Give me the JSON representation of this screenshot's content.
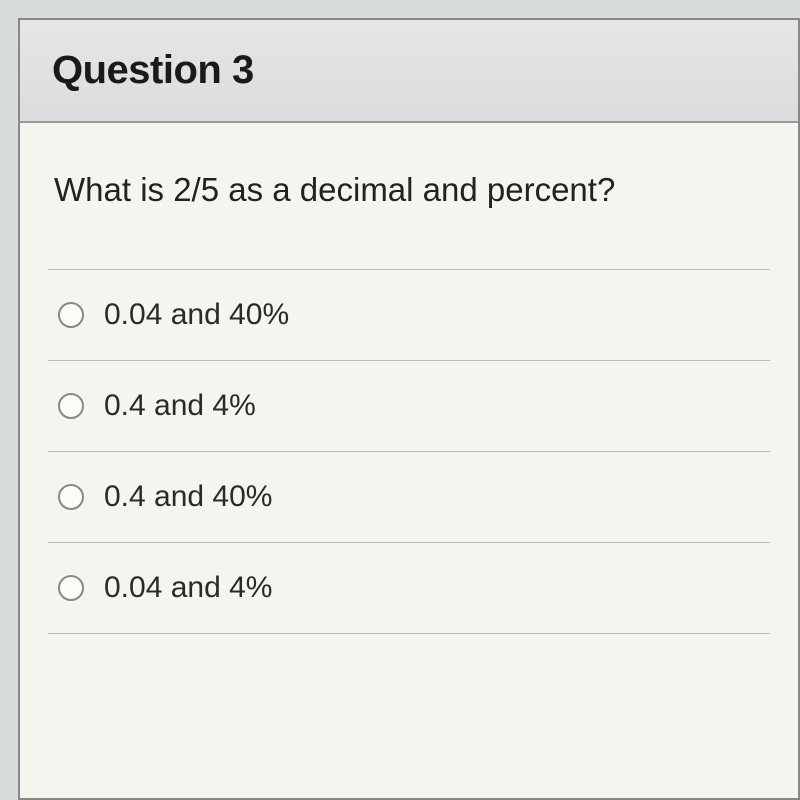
{
  "header": {
    "title": "Question 3"
  },
  "body": {
    "prompt": "What is 2/5 as a decimal and percent?"
  },
  "options": [
    {
      "label": "0.04 and 40%"
    },
    {
      "label": "0.4 and 4%"
    },
    {
      "label": "0.4 and 40%"
    },
    {
      "label": "0.04 and 4%"
    }
  ],
  "styling": {
    "type": "multiple-choice-quiz",
    "card_border_color": "#888888",
    "card_background": "#f5f5f0",
    "header_background_top": "#e6e6e8",
    "header_background_bottom": "#dcdcdf",
    "header_border_bottom": "#999999",
    "title_fontsize": 40,
    "title_fontweight": 800,
    "title_color": "#1a1a1a",
    "prompt_fontsize": 33,
    "prompt_color": "#222222",
    "option_fontsize": 30,
    "option_color": "#2a2a2a",
    "option_divider_color": "#bcbcbc",
    "radio_size": 26,
    "radio_border_color": "#888888",
    "radio_background": "#fbfbf8",
    "page_background": "#d8dcdc"
  }
}
